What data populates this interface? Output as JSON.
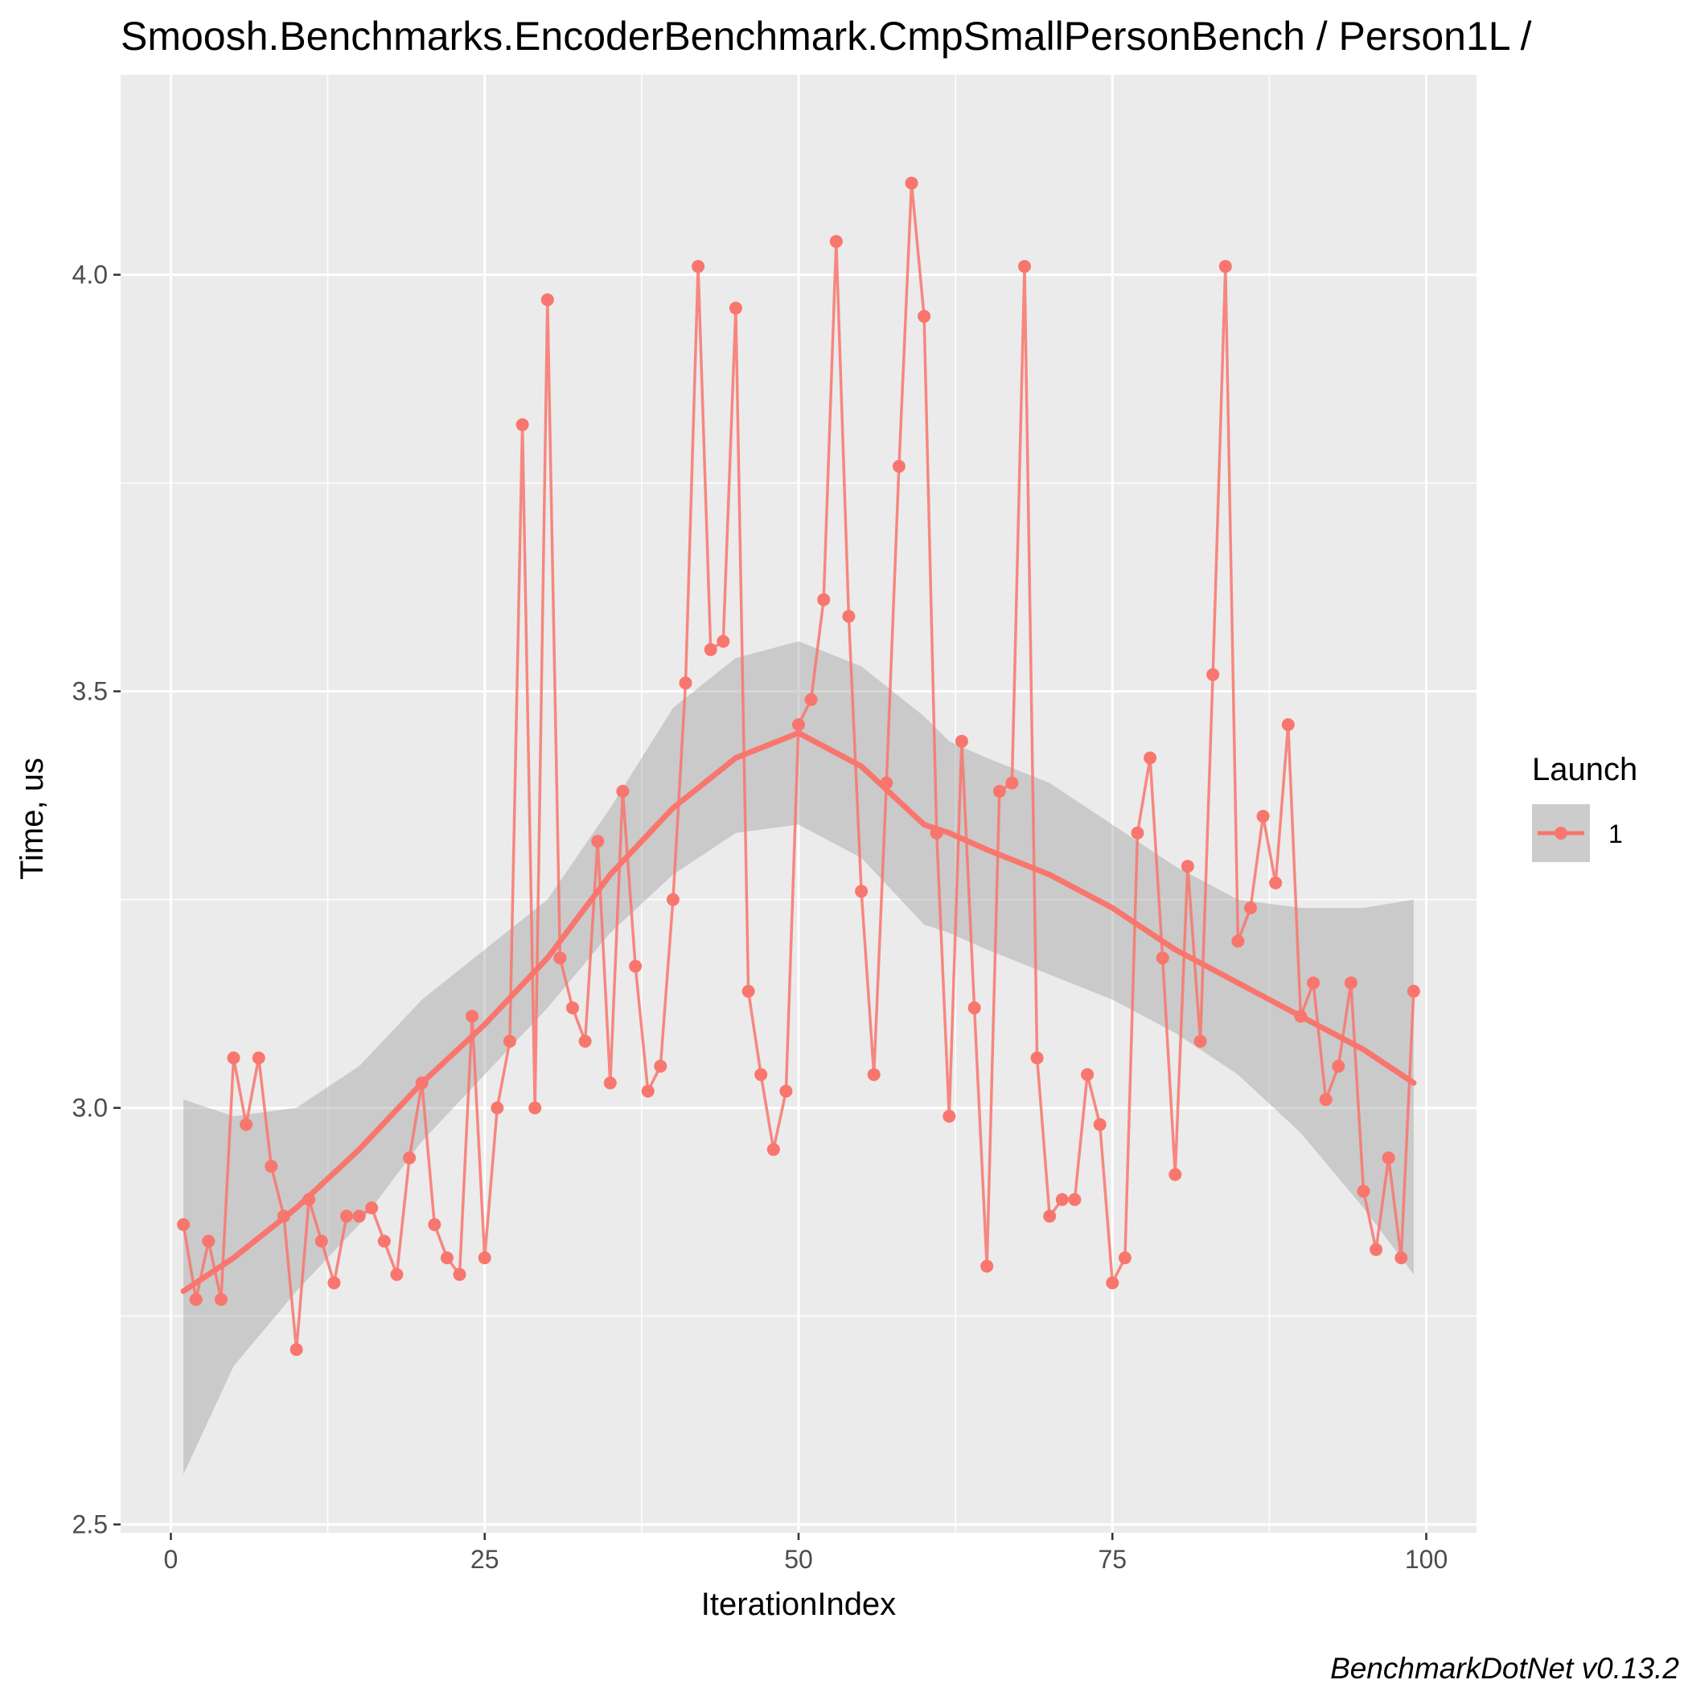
{
  "chart_data": {
    "type": "line",
    "title": "Smoosh.Benchmarks.EncoderBenchmark.CmpSmallPersonBench / Person1L /",
    "xlabel": "IterationIndex",
    "ylabel": "Time, us",
    "caption": "BenchmarkDotNet v0.13.2",
    "xlim": [
      -4,
      104
    ],
    "ylim": [
      2.49,
      4.24
    ],
    "x_ticks": [
      0,
      25,
      50,
      75,
      100
    ],
    "x_tick_labels": [
      "0",
      "25",
      "50",
      "75",
      "100"
    ],
    "y_ticks": [
      2.5,
      3.0,
      3.5,
      4.0
    ],
    "y_tick_labels": [
      "2.5",
      "3.0",
      "3.5",
      "4.0"
    ],
    "grid": true,
    "legend": {
      "title": "Launch",
      "position": "right",
      "entries": [
        "1"
      ]
    },
    "colors": {
      "series": "#f8766d",
      "band": "#999999",
      "panel": "#ebebeb"
    },
    "series": [
      {
        "name": "1",
        "x": [
          1,
          2,
          3,
          4,
          5,
          6,
          7,
          8,
          9,
          10,
          11,
          12,
          13,
          14,
          15,
          16,
          17,
          18,
          19,
          20,
          21,
          22,
          23,
          24,
          25,
          26,
          27,
          28,
          29,
          30,
          31,
          32,
          33,
          34,
          35,
          36,
          37,
          38,
          39,
          40,
          41,
          42,
          43,
          44,
          45,
          46,
          47,
          48,
          49,
          50,
          51,
          52,
          53,
          54,
          55,
          56,
          57,
          58,
          59,
          60,
          61,
          62,
          63,
          64,
          65,
          66,
          67,
          68,
          69,
          70,
          71,
          72,
          73,
          74,
          75,
          76,
          77,
          78,
          79,
          80,
          81,
          82,
          83,
          84,
          85,
          86,
          87,
          88,
          89,
          90,
          91,
          92,
          93,
          94,
          95,
          96,
          97,
          98,
          99
        ],
        "values": [
          2.86,
          2.77,
          2.84,
          2.77,
          3.06,
          2.98,
          3.06,
          2.93,
          2.87,
          2.71,
          2.89,
          2.84,
          2.79,
          2.87,
          2.87,
          2.88,
          2.84,
          2.8,
          2.94,
          3.03,
          2.86,
          2.82,
          2.8,
          3.11,
          2.82,
          3.0,
          3.08,
          3.82,
          3.0,
          3.97,
          3.18,
          3.12,
          3.08,
          3.32,
          3.03,
          3.38,
          3.17,
          3.02,
          3.05,
          3.25,
          3.51,
          4.01,
          3.55,
          3.56,
          3.96,
          3.14,
          3.04,
          2.95,
          3.02,
          3.46,
          3.49,
          3.61,
          4.04,
          3.59,
          3.26,
          3.04,
          3.39,
          3.77,
          4.11,
          3.95,
          3.33,
          2.99,
          3.44,
          3.12,
          2.81,
          3.38,
          3.39,
          4.01,
          3.06,
          2.87,
          2.89,
          2.89,
          3.04,
          2.98,
          2.79,
          2.82,
          3.33,
          3.42,
          3.18,
          2.92,
          3.29,
          3.08,
          3.52,
          4.01,
          3.2,
          3.24,
          3.35,
          3.27,
          3.46,
          3.11,
          3.15,
          3.01,
          3.05,
          3.15,
          2.9,
          2.83,
          2.94,
          2.82,
          3.14
        ]
      }
    ],
    "smooth": {
      "x": [
        1,
        5,
        10,
        15,
        20,
        25,
        30,
        35,
        40,
        45,
        50,
        55,
        60,
        62,
        65,
        70,
        75,
        80,
        85,
        90,
        95,
        99
      ],
      "fit": [
        2.78,
        2.82,
        2.88,
        2.95,
        3.03,
        3.1,
        3.18,
        3.28,
        3.36,
        3.42,
        3.45,
        3.41,
        3.34,
        3.33,
        3.31,
        3.28,
        3.24,
        3.19,
        3.15,
        3.11,
        3.07,
        3.03
      ],
      "lower": [
        2.56,
        2.69,
        2.78,
        2.86,
        2.96,
        3.04,
        3.12,
        3.21,
        3.28,
        3.33,
        3.34,
        3.3,
        3.22,
        3.21,
        3.19,
        3.16,
        3.13,
        3.09,
        3.04,
        2.97,
        2.88,
        2.8
      ],
      "upper": [
        3.01,
        2.99,
        3.0,
        3.05,
        3.13,
        3.19,
        3.25,
        3.36,
        3.48,
        3.54,
        3.56,
        3.53,
        3.47,
        3.44,
        3.42,
        3.39,
        3.34,
        3.29,
        3.25,
        3.24,
        3.24,
        3.25
      ]
    }
  }
}
